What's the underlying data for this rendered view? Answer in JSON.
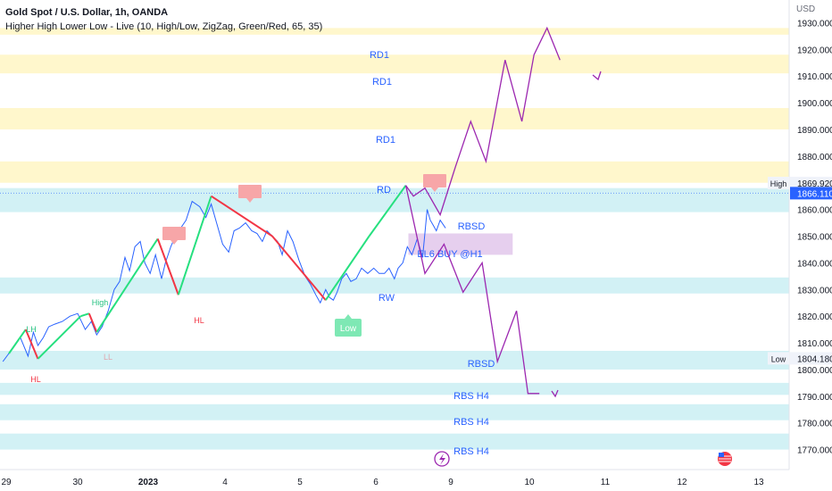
{
  "header": {
    "title": "Gold Spot / U.S. Dollar, 1h, OANDA",
    "indicator": "Higher High Lower Low - Live (10, High/Low, ZigZag, Green/Red, 65, 35)",
    "currency": "USD"
  },
  "colors": {
    "zone_yellow": "#fff7cc",
    "zone_cyan": "#d2f1f5",
    "zone_purple": "#e6cfee",
    "price_line": "#2962ff",
    "zigzag_up": "#26e07f",
    "zigzag_down": "#f23645",
    "projection": "#9c27b0",
    "label_red": "#f7a6a8",
    "label_green": "#7ee8b4"
  },
  "chart_data": {
    "type": "line",
    "x_ticks": [
      "29",
      "30",
      "2023",
      "4",
      "5",
      "6",
      "9",
      "10",
      "11",
      "12",
      "13"
    ],
    "x_range": [
      0,
      10.3
    ],
    "y_ticks": [
      1770,
      1780,
      1790,
      1800,
      1810,
      1820,
      1830,
      1840,
      1850,
      1860,
      1870,
      1880,
      1890,
      1900,
      1910,
      1920,
      1930
    ],
    "y_tick_labels": [
      "1770.000",
      "1780.000",
      "1790.000",
      "1800.000",
      "1810.000",
      "1820.000",
      "1830.000",
      "1840.000",
      "1850.000",
      "1860.000",
      "1870.000",
      "1880.000",
      "1890.000",
      "1900.000",
      "1910.000",
      "1920.000",
      "1930.000"
    ],
    "y_range": [
      1762.5,
      1938.5
    ],
    "grid": false,
    "price_series": {
      "x": [
        -0.08,
        0.05,
        0.15,
        0.25,
        0.32,
        0.38,
        0.45,
        0.52,
        0.6,
        0.7,
        0.8,
        0.9,
        1.0,
        1.08,
        1.15,
        1.22,
        1.3,
        1.38,
        1.45,
        1.52,
        1.58,
        1.65,
        1.72,
        1.78,
        1.85,
        1.92,
        2.0,
        2.05,
        2.12,
        2.18,
        2.25,
        2.32,
        2.4,
        2.5,
        2.58,
        2.65,
        2.72,
        2.8,
        2.88,
        2.95,
        3.02,
        3.1,
        3.18,
        3.25,
        3.32,
        3.38,
        3.45,
        3.52,
        3.58,
        3.65,
        3.72,
        3.8,
        3.88,
        3.95,
        4.02,
        4.08,
        4.15,
        4.2,
        4.25,
        4.3,
        4.36,
        4.42,
        4.48,
        4.55,
        4.62,
        4.7,
        4.78,
        4.85,
        4.92,
        4.98,
        5.05,
        5.1,
        5.16,
        5.22,
        5.28,
        5.35,
        5.42,
        5.48,
        5.52,
        5.56,
        5.6,
        5.65,
        5.72
      ],
      "y": [
        1803,
        1808,
        1812,
        1805,
        1814,
        1809,
        1812,
        1816,
        1817,
        1818,
        1820,
        1821,
        1815,
        1818,
        1813,
        1816,
        1822,
        1830,
        1833,
        1842,
        1837,
        1846,
        1848,
        1840,
        1836,
        1843,
        1834,
        1840,
        1846,
        1850,
        1853,
        1856,
        1863,
        1861,
        1857,
        1862,
        1855,
        1847,
        1844,
        1852,
        1853,
        1855,
        1852,
        1851,
        1848,
        1852,
        1850,
        1848,
        1843,
        1852,
        1848,
        1841,
        1835,
        1832,
        1828,
        1825,
        1830,
        1827,
        1826,
        1829,
        1834,
        1836,
        1833,
        1834,
        1838,
        1836,
        1838,
        1836,
        1836,
        1838,
        1834,
        1838,
        1840,
        1846,
        1843,
        1849,
        1842,
        1860,
        1856,
        1854,
        1852,
        1856,
        1853
      ]
    },
    "zigzag": {
      "x": [
        0.0,
        0.22,
        0.38,
        0.94,
        1.05,
        1.15,
        1.95,
        2.22,
        2.65,
        3.45,
        4.15,
        4.72,
        5.2
      ],
      "y": [
        1806.0,
        1815.0,
        1804.0,
        1820.0,
        1821.0,
        1814.0,
        1849.0,
        1828.0,
        1865.0,
        1850.0,
        1826.0,
        1850.0,
        1869.0
      ]
    },
    "projection": {
      "x": [
        5.2,
        5.3,
        5.45,
        5.65,
        5.85,
        6.05,
        6.25,
        6.5,
        6.72,
        6.88,
        7.05,
        7.22
      ],
      "y": [
        1869.0,
        1865.0,
        1868.0,
        1858.0,
        1876.0,
        1893.0,
        1878.0,
        1916.0,
        1893.0,
        1918.0,
        1928.0,
        1916.0
      ]
    },
    "projection_down": {
      "x": [
        5.2,
        5.45,
        5.7,
        5.95,
        6.2,
        6.4,
        6.65,
        6.8,
        6.95
      ],
      "y": [
        1869.0,
        1836.0,
        1847.0,
        1829.0,
        1840.0,
        1803.0,
        1822.0,
        1791.0,
        1791.0
      ]
    },
    "zones": [
      {
        "label": "RD1",
        "color": "yellow",
        "y1": 1925.5,
        "y2": 1928.0
      },
      {
        "label": "RD1",
        "color": "yellow",
        "y1": 1911.0,
        "y2": 1918.0
      },
      {
        "label": "RD1",
        "color": "yellow",
        "y1": 1890.0,
        "y2": 1898.0
      },
      {
        "label": "RD",
        "color": "yellow",
        "y1": 1870.0,
        "y2": 1878.0
      },
      {
        "label": "RBSD",
        "color": "cyan",
        "y1": 1859.0,
        "y2": 1868.0
      },
      {
        "label": "RW",
        "color": "cyan",
        "y1": 1828.5,
        "y2": 1834.5
      },
      {
        "label": "RBSD",
        "color": "cyan",
        "y1": 1800.0,
        "y2": 1807.0
      },
      {
        "label": "RBS H4",
        "color": "cyan",
        "y1": 1790.5,
        "y2": 1795.0
      },
      {
        "label": "RBS H4",
        "color": "cyan",
        "y1": 1781.0,
        "y2": 1787.0
      },
      {
        "label": "RBS H4",
        "color": "cyan",
        "y1": 1770.0,
        "y2": 1776.0
      }
    ],
    "buy_zone": {
      "label": "EL6 BUY @H1",
      "x1": 5.0,
      "x2": 6.6,
      "y1": 1843.0,
      "y2": 1851.0
    },
    "annotations": [
      {
        "text": "LH",
        "x": 0.22,
        "y": 1819,
        "color": "green"
      },
      {
        "text": "HL",
        "x": 0.38,
        "y": 1798,
        "color": "red"
      },
      {
        "text": "High",
        "x": 0.94,
        "y": 1832,
        "color": "green"
      },
      {
        "text": "LL",
        "x": 1.15,
        "y": 1809,
        "color": "red"
      },
      {
        "text": "HL",
        "x": 2.22,
        "y": 1823,
        "color": "red"
      },
      {
        "text": "Low",
        "x": 4.15,
        "y": 1819,
        "color": "green_box"
      }
    ],
    "price_tags": [
      {
        "text": "High",
        "price": "1869.920",
        "y": 1869.9,
        "style": "light"
      },
      {
        "text": "",
        "price": "1866.110",
        "y": 1866.1,
        "style": "blue"
      },
      {
        "text": "Low",
        "price": "1804.180",
        "y": 1804.2,
        "style": "light"
      }
    ]
  }
}
